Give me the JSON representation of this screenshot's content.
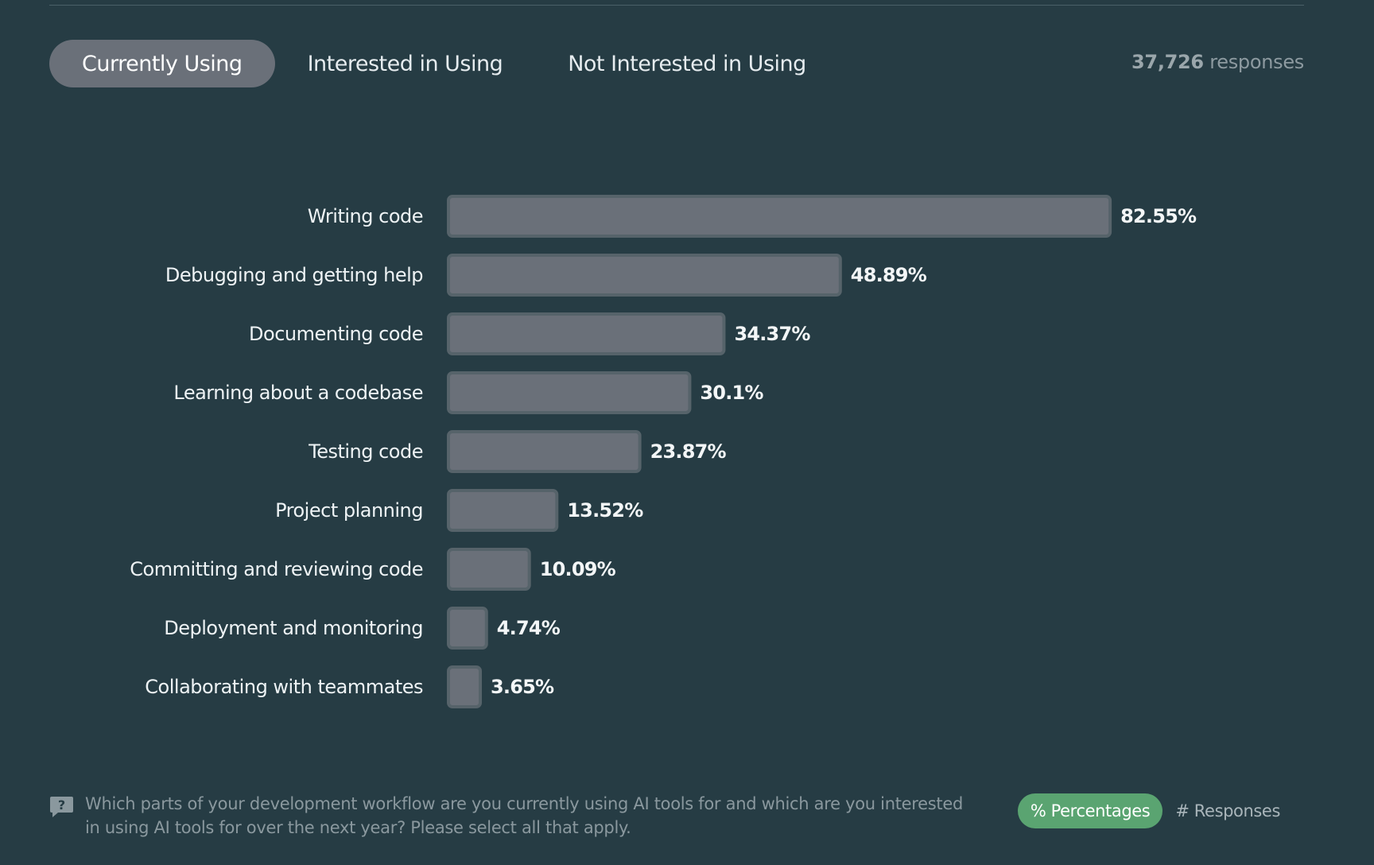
{
  "tabs": [
    {
      "label": "Currently Using",
      "active": true
    },
    {
      "label": "Interested in Using",
      "active": false
    },
    {
      "label": "Not Interested in Using",
      "active": false
    }
  ],
  "responses": {
    "count": "37,726",
    "suffix": "responses"
  },
  "chart_data": {
    "type": "bar",
    "orientation": "horizontal",
    "categories": [
      "Writing code",
      "Debugging and getting help",
      "Documenting code",
      "Learning about a codebase",
      "Testing code",
      "Project planning",
      "Committing and reviewing code",
      "Deployment and monitoring",
      "Collaborating with teammates"
    ],
    "values": [
      82.55,
      48.89,
      34.37,
      30.1,
      23.87,
      13.52,
      10.09,
      4.74,
      3.65
    ],
    "value_labels": [
      "82.55%",
      "48.89%",
      "34.37%",
      "30.1%",
      "23.87%",
      "13.52%",
      "10.09%",
      "4.74%",
      "3.65%"
    ],
    "unit": "%",
    "bar_color": "#6a7079",
    "bar_border_color": "#56636a"
  },
  "question": {
    "icon": "question-icon",
    "text": "Which parts of your development workflow are you currently using AI tools for and which are you interested in using AI tools for over the next year? Please select all that apply."
  },
  "toggle": {
    "percentages_label": "% Percentages",
    "responses_label": "# Responses",
    "active": "percentages",
    "active_color": "#5aa471"
  }
}
